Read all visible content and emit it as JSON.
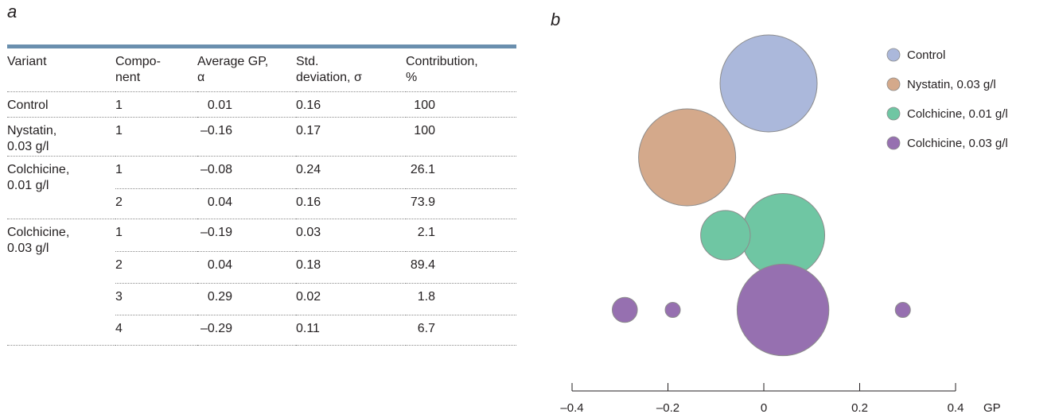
{
  "panel_a_label": "a",
  "panel_b_label": "b",
  "table": {
    "headers": {
      "variant": "Variant",
      "component_line1": "Compo-",
      "component_line2": "nent",
      "avg_line1": "Average GP,",
      "avg_line2": "α",
      "std_line1": "Std.",
      "std_line2": "deviation, σ",
      "contrib_line1": "Contribution,",
      "contrib_line2": "%"
    },
    "groups": [
      {
        "variant_line1": "Control",
        "variant_line2": "",
        "rows": [
          {
            "component": "1",
            "avg_gp": "0.01",
            "std": "0.16",
            "contribution": "100"
          }
        ]
      },
      {
        "variant_line1": "Nystatin,",
        "variant_line2": "0.03 g/l",
        "rows": [
          {
            "component": "1",
            "avg_gp": "–0.16",
            "std": "0.17",
            "contribution": "100"
          }
        ]
      },
      {
        "variant_line1": "Colchicine,",
        "variant_line2": "0.01 g/l",
        "rows": [
          {
            "component": "1",
            "avg_gp": "–0.08",
            "std": "0.24",
            "contribution": "26.1"
          },
          {
            "component": "2",
            "avg_gp": "0.04",
            "std": "0.16",
            "contribution": "73.9"
          }
        ]
      },
      {
        "variant_line1": "Colchicine,",
        "variant_line2": "0.03 g/l",
        "rows": [
          {
            "component": "1",
            "avg_gp": "–0.19",
            "std": "0.03",
            "contribution": "2.1"
          },
          {
            "component": "2",
            "avg_gp": "0.04",
            "std": "0.18",
            "contribution": "89.4"
          },
          {
            "component": "3",
            "avg_gp": "0.29",
            "std": "0.02",
            "contribution": "1.8"
          },
          {
            "component": "4",
            "avg_gp": "–0.29",
            "std": "0.11",
            "contribution": "6.7"
          }
        ]
      }
    ]
  },
  "chart_data": {
    "type": "scatter",
    "subtype": "bubble",
    "xlabel": "GP",
    "xlim": [
      -0.4,
      0.4
    ],
    "xticks": [
      -0.4,
      -0.2,
      0,
      0.2,
      0.4
    ],
    "xtick_labels": [
      "–0.4",
      "–0.2",
      "0",
      "0.2",
      "0.4"
    ],
    "grid": false,
    "legend_position": "top-right",
    "bubble_size_encodes": "contribution, %",
    "series": [
      {
        "name": "Control",
        "color": "#abb8db",
        "points": [
          {
            "x": 0.01,
            "contribution": 100
          }
        ]
      },
      {
        "name": "Nystatin, 0.03 g/l",
        "color": "#d4a98b",
        "points": [
          {
            "x": -0.16,
            "contribution": 100
          }
        ]
      },
      {
        "name": "Colchicine, 0.01 g/l",
        "color": "#6fc6a3",
        "points": [
          {
            "x": -0.08,
            "contribution": 26.1
          },
          {
            "x": 0.04,
            "contribution": 73.9
          }
        ]
      },
      {
        "name": "Colchicine, 0.03 g/l",
        "color": "#9670b0",
        "points": [
          {
            "x": -0.19,
            "contribution": 2.1
          },
          {
            "x": 0.04,
            "contribution": 89.4
          },
          {
            "x": 0.29,
            "contribution": 1.8
          },
          {
            "x": -0.29,
            "contribution": 6.7
          }
        ]
      }
    ]
  }
}
